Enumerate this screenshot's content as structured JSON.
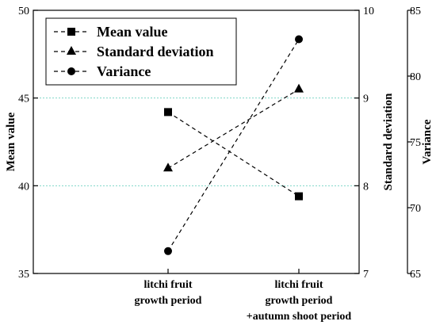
{
  "chart_data": {
    "type": "line",
    "categories": [
      [
        "litchi fruit",
        "growth period"
      ],
      [
        "litchi fruit",
        "growth period",
        "+autumn shoot period"
      ]
    ],
    "axes": {
      "left": {
        "label": "Mean value",
        "range": [
          35,
          50
        ],
        "ticks": [
          35,
          40,
          45,
          50
        ]
      },
      "right1": {
        "label": "Standard deviation",
        "range": [
          7,
          10
        ],
        "ticks": [
          7,
          8,
          9,
          10
        ]
      },
      "right2": {
        "label": "Variance",
        "range": [
          65,
          85
        ],
        "ticks": [
          65,
          70,
          75,
          80,
          85
        ]
      }
    },
    "series": [
      {
        "name": "Mean value",
        "axis": "left",
        "marker": "square",
        "values": [
          44.2,
          39.4
        ]
      },
      {
        "name": "Standard deviation",
        "axis": "right1",
        "marker": "triangle",
        "values": [
          8.2,
          9.1
        ]
      },
      {
        "name": "Variance",
        "axis": "right2",
        "marker": "circle",
        "values": [
          66.7,
          82.8
        ]
      }
    ],
    "gridlines": {
      "axis": "left",
      "values": [
        40,
        45
      ],
      "color": "#7fd6c8",
      "style": "dotted"
    },
    "line_style": "dashed",
    "legend_position": "top-left",
    "colors": {
      "lines": "#000000",
      "grid": "#7fd6c8"
    }
  }
}
